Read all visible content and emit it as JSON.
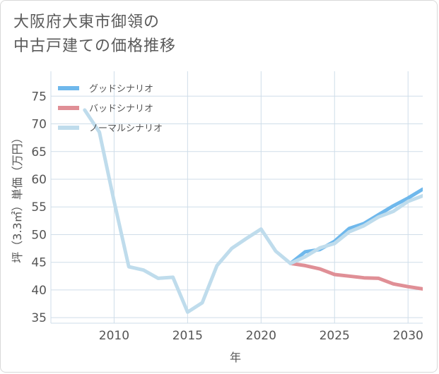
{
  "title": "大阪府大東市御領の\n中古戸建ての価格推移",
  "chart_data": {
    "type": "line",
    "xlabel": "年",
    "ylabel": "坪（3.3㎡）単価（万円）",
    "xlim": [
      2005.7,
      2031
    ],
    "ylim": [
      34,
      79.5
    ],
    "xticks": [
      2010,
      2015,
      2020,
      2025,
      2030
    ],
    "yticks": [
      35,
      40,
      45,
      50,
      55,
      60,
      65,
      70,
      75
    ],
    "legend_position": "top-left",
    "colors": {
      "good": "#6fb8ec",
      "bad": "#e08f96",
      "normal": "#bfdcec",
      "grid": "#cfdde9"
    },
    "series": [
      {
        "key": "good",
        "name": "グッドシナリオ",
        "x": [
          2022,
          2023,
          2024,
          2025,
          2026,
          2027,
          2028,
          2029,
          2030,
          2031
        ],
        "values": [
          44.8,
          46.9,
          47.3,
          48.8,
          51.1,
          52.0,
          53.6,
          55.2,
          56.6,
          58.2
        ]
      },
      {
        "key": "bad",
        "name": "バッドシナリオ",
        "x": [
          2022,
          2023,
          2024,
          2025,
          2026,
          2027,
          2028,
          2029,
          2030,
          2031
        ],
        "values": [
          44.8,
          44.4,
          43.8,
          42.8,
          42.5,
          42.2,
          42.1,
          41.1,
          40.6,
          40.2
        ]
      },
      {
        "key": "normal",
        "name": "ノーマルシナリオ",
        "x": [
          2008,
          2009,
          2010,
          2011,
          2012,
          2013,
          2014,
          2015,
          2016,
          2017,
          2018,
          2019,
          2020,
          2021,
          2022,
          2023,
          2024,
          2025,
          2026,
          2027,
          2028,
          2029,
          2030,
          2031
        ],
        "values": [
          72.5,
          68.5,
          56.0,
          44.2,
          43.6,
          42.1,
          42.3,
          36.0,
          37.7,
          44.4,
          47.5,
          49.3,
          51.0,
          47.0,
          44.8,
          46.0,
          47.6,
          48.4,
          50.5,
          51.6,
          53.2,
          54.2,
          56.0,
          57.0
        ]
      }
    ]
  }
}
